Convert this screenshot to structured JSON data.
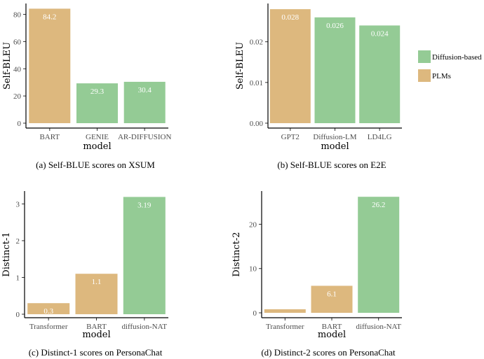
{
  "colors": {
    "PLMs": "#ddb87e",
    "Diffusion-based": "#94cb95"
  },
  "legend": {
    "items": [
      {
        "label": "Diffusion-based",
        "color_key": "Diffusion-based"
      },
      {
        "label": "PLMs",
        "color_key": "PLMs"
      }
    ]
  },
  "chart_data": [
    {
      "type": "bar",
      "panel": "a",
      "caption": "(a) Self-BLUE scores on XSUM",
      "xlabel": "model",
      "ylabel": "Self-BLEU",
      "categories": [
        "BART",
        "GENIE",
        "AR-DIFFUSION"
      ],
      "values": [
        84.2,
        29.3,
        30.4
      ],
      "labels": [
        "84.2",
        "29.3",
        "30.4"
      ],
      "groups": [
        "PLMs",
        "Diffusion-based",
        "Diffusion-based"
      ],
      "yticks": [
        0,
        20,
        40,
        60,
        80
      ],
      "ytick_labels": [
        "0",
        "20",
        "40",
        "60",
        "80"
      ],
      "ylim": [
        0,
        88
      ]
    },
    {
      "type": "bar",
      "panel": "b",
      "caption": "(b) Self-BLUE scores on E2E",
      "xlabel": "model",
      "ylabel": "Self-BLEU",
      "categories": [
        "GPT2",
        "Diffusion-LM",
        "LD4LG"
      ],
      "values": [
        0.028,
        0.026,
        0.024
      ],
      "labels": [
        "0.028",
        "0.026",
        "0.024"
      ],
      "groups": [
        "PLMs",
        "Diffusion-based",
        "Diffusion-based"
      ],
      "yticks": [
        0,
        0.01,
        0.02
      ],
      "ytick_labels": [
        "0.00",
        "0.01",
        "0.02"
      ],
      "ylim": [
        0,
        0.0294
      ]
    },
    {
      "type": "bar",
      "panel": "c",
      "caption": "(c) Distinct-1 scores on PersonaChat",
      "xlabel": "model",
      "ylabel": "Distinct-1",
      "categories": [
        "Transformer",
        "BART",
        "diffusion-NAT"
      ],
      "values": [
        0.3,
        1.1,
        3.19
      ],
      "labels": [
        "0.3",
        "1.1",
        "3.19"
      ],
      "groups": [
        "PLMs",
        "PLMs",
        "Diffusion-based"
      ],
      "yticks": [
        0,
        1,
        2,
        3
      ],
      "ytick_labels": [
        "0",
        "1",
        "2",
        "3"
      ],
      "ylim": [
        0,
        3.35
      ]
    },
    {
      "type": "bar",
      "panel": "d",
      "caption": "(d) Distinct-2 scores on PersonaChat",
      "xlabel": "model",
      "ylabel": "Distinct-2",
      "categories": [
        "Transformer",
        "BART",
        "diffusion-NAT"
      ],
      "values": [
        0.8,
        6.1,
        26.2
      ],
      "labels": [
        "",
        "6.1",
        "26.2"
      ],
      "groups": [
        "PLMs",
        "PLMs",
        "Diffusion-based"
      ],
      "yticks": [
        0,
        10,
        20
      ],
      "ytick_labels": [
        "0",
        "10",
        "20"
      ],
      "ylim": [
        0,
        27.5
      ]
    }
  ]
}
